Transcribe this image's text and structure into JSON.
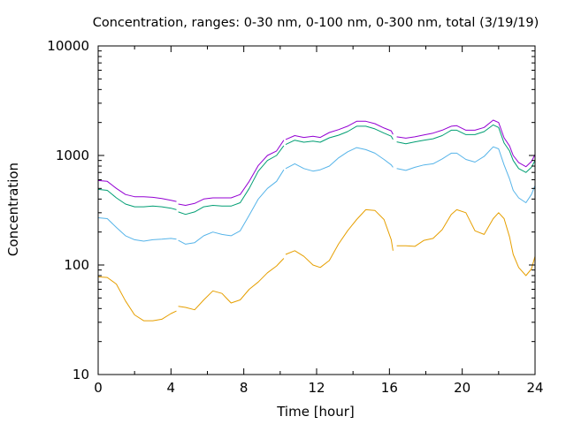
{
  "chart_data": {
    "type": "line",
    "title": "Concentration, ranges: 0-30 nm, 0-100 nm, 0-300 nm, total (3/19/19)",
    "xlabel": "Time [hour]",
    "ylabel": "Concentration",
    "xlim": [
      0,
      24
    ],
    "ylim": [
      10,
      10000
    ],
    "yscale": "log",
    "x_ticks": [
      0,
      4,
      8,
      12,
      16,
      20,
      24
    ],
    "x_tick_labels": [
      "0",
      "4",
      "8",
      "12",
      "16",
      "20",
      "24"
    ],
    "y_ticks": [
      10,
      100,
      1000,
      10000
    ],
    "y_tick_labels": [
      "10",
      "100",
      "1000",
      "10000"
    ],
    "grid": false,
    "legend": false,
    "series": [
      {
        "color": "#e69f00",
        "points": [
          [
            0,
            78
          ],
          [
            0.5,
            77
          ],
          [
            1,
            67
          ],
          [
            1.5,
            47
          ],
          [
            2,
            35
          ],
          [
            2.5,
            31
          ],
          [
            3,
            31
          ],
          [
            3.5,
            32
          ],
          [
            4,
            36
          ],
          [
            4.3,
            38
          ],
          [
            null,
            null
          ],
          [
            4.4,
            42
          ],
          [
            4.8,
            41
          ],
          [
            5.3,
            39
          ],
          [
            5.8,
            48
          ],
          [
            6.3,
            58
          ],
          [
            6.8,
            55
          ],
          [
            7.3,
            45
          ],
          [
            7.8,
            48
          ],
          [
            8.3,
            60
          ],
          [
            8.8,
            70
          ],
          [
            9.3,
            85
          ],
          [
            9.8,
            98
          ],
          [
            10.2,
            115
          ],
          [
            null,
            null
          ],
          [
            10.3,
            125
          ],
          [
            10.8,
            135
          ],
          [
            11.3,
            120
          ],
          [
            11.8,
            100
          ],
          [
            12.2,
            95
          ],
          [
            12.7,
            110
          ],
          [
            13.2,
            155
          ],
          [
            13.7,
            205
          ],
          [
            14.2,
            260
          ],
          [
            14.7,
            320
          ],
          [
            15.2,
            315
          ],
          [
            15.7,
            260
          ],
          [
            16.1,
            170
          ],
          [
            16.2,
            135
          ],
          [
            null,
            null
          ],
          [
            16.4,
            150
          ],
          [
            16.9,
            150
          ],
          [
            17.4,
            148
          ],
          [
            17.9,
            168
          ],
          [
            18.4,
            175
          ],
          [
            18.9,
            210
          ],
          [
            19.4,
            290
          ],
          [
            19.7,
            320
          ],
          [
            20.2,
            300
          ],
          [
            20.7,
            205
          ],
          [
            21.2,
            190
          ],
          [
            21.7,
            265
          ],
          [
            22.0,
            300
          ],
          [
            22.3,
            265
          ],
          [
            22.6,
            180
          ],
          [
            22.8,
            125
          ],
          [
            23.1,
            95
          ],
          [
            23.5,
            80
          ],
          [
            23.8,
            92
          ],
          [
            24,
            120
          ]
        ]
      },
      {
        "color": "#56b4e9",
        "points": [
          [
            0,
            270
          ],
          [
            0.5,
            265
          ],
          [
            1,
            220
          ],
          [
            1.5,
            185
          ],
          [
            2,
            170
          ],
          [
            2.5,
            165
          ],
          [
            3,
            170
          ],
          [
            3.5,
            172
          ],
          [
            4,
            175
          ],
          [
            4.3,
            172
          ],
          [
            null,
            null
          ],
          [
            4.4,
            168
          ],
          [
            4.8,
            155
          ],
          [
            5.3,
            160
          ],
          [
            5.8,
            185
          ],
          [
            6.3,
            200
          ],
          [
            6.8,
            190
          ],
          [
            7.3,
            185
          ],
          [
            7.8,
            205
          ],
          [
            8.3,
            285
          ],
          [
            8.8,
            400
          ],
          [
            9.3,
            500
          ],
          [
            9.8,
            580
          ],
          [
            10.2,
            740
          ],
          [
            null,
            null
          ],
          [
            10.3,
            760
          ],
          [
            10.8,
            840
          ],
          [
            11.3,
            760
          ],
          [
            11.8,
            720
          ],
          [
            12.2,
            740
          ],
          [
            12.7,
            800
          ],
          [
            13.2,
            950
          ],
          [
            13.7,
            1080
          ],
          [
            14.2,
            1180
          ],
          [
            14.7,
            1130
          ],
          [
            15.2,
            1050
          ],
          [
            15.7,
            920
          ],
          [
            16.1,
            820
          ],
          [
            16.2,
            780
          ],
          [
            null,
            null
          ],
          [
            16.4,
            760
          ],
          [
            16.9,
            730
          ],
          [
            17.4,
            780
          ],
          [
            17.9,
            820
          ],
          [
            18.4,
            840
          ],
          [
            18.9,
            930
          ],
          [
            19.4,
            1050
          ],
          [
            19.7,
            1050
          ],
          [
            20.2,
            920
          ],
          [
            20.7,
            870
          ],
          [
            21.2,
            980
          ],
          [
            21.7,
            1200
          ],
          [
            22.0,
            1150
          ],
          [
            22.3,
            820
          ],
          [
            22.6,
            610
          ],
          [
            22.8,
            480
          ],
          [
            23.1,
            410
          ],
          [
            23.5,
            370
          ],
          [
            23.8,
            440
          ],
          [
            24,
            530
          ]
        ]
      },
      {
        "color": "#009e73",
        "points": [
          [
            0,
            490
          ],
          [
            0.5,
            480
          ],
          [
            1,
            410
          ],
          [
            1.5,
            360
          ],
          [
            2,
            340
          ],
          [
            2.5,
            340
          ],
          [
            3,
            345
          ],
          [
            3.5,
            340
          ],
          [
            4,
            330
          ],
          [
            4.3,
            320
          ],
          [
            null,
            null
          ],
          [
            4.4,
            305
          ],
          [
            4.8,
            290
          ],
          [
            5.3,
            305
          ],
          [
            5.8,
            340
          ],
          [
            6.3,
            350
          ],
          [
            6.8,
            345
          ],
          [
            7.3,
            345
          ],
          [
            7.8,
            370
          ],
          [
            8.3,
            500
          ],
          [
            8.8,
            720
          ],
          [
            9.3,
            900
          ],
          [
            9.8,
            1000
          ],
          [
            10.2,
            1230
          ],
          [
            null,
            null
          ],
          [
            10.3,
            1260
          ],
          [
            10.8,
            1380
          ],
          [
            11.3,
            1320
          ],
          [
            11.8,
            1350
          ],
          [
            12.2,
            1320
          ],
          [
            12.7,
            1450
          ],
          [
            13.2,
            1530
          ],
          [
            13.7,
            1650
          ],
          [
            14.2,
            1850
          ],
          [
            14.7,
            1850
          ],
          [
            15.2,
            1750
          ],
          [
            15.7,
            1600
          ],
          [
            16.1,
            1500
          ],
          [
            16.2,
            1400
          ],
          [
            null,
            null
          ],
          [
            16.4,
            1330
          ],
          [
            16.9,
            1280
          ],
          [
            17.4,
            1330
          ],
          [
            17.9,
            1380
          ],
          [
            18.4,
            1420
          ],
          [
            18.9,
            1520
          ],
          [
            19.4,
            1700
          ],
          [
            19.7,
            1700
          ],
          [
            20.2,
            1550
          ],
          [
            20.7,
            1550
          ],
          [
            21.2,
            1650
          ],
          [
            21.7,
            1900
          ],
          [
            22.0,
            1800
          ],
          [
            22.3,
            1300
          ],
          [
            22.6,
            1100
          ],
          [
            22.8,
            900
          ],
          [
            23.1,
            760
          ],
          [
            23.5,
            700
          ],
          [
            23.8,
            780
          ],
          [
            24,
            900
          ]
        ]
      },
      {
        "color": "#9400d3",
        "points": [
          [
            0,
            590
          ],
          [
            0.5,
            580
          ],
          [
            1,
            500
          ],
          [
            1.5,
            440
          ],
          [
            2,
            420
          ],
          [
            2.5,
            420
          ],
          [
            3,
            415
          ],
          [
            3.5,
            405
          ],
          [
            4,
            390
          ],
          [
            4.3,
            380
          ],
          [
            null,
            null
          ],
          [
            4.4,
            360
          ],
          [
            4.8,
            350
          ],
          [
            5.3,
            365
          ],
          [
            5.8,
            400
          ],
          [
            6.3,
            410
          ],
          [
            6.8,
            410
          ],
          [
            7.3,
            410
          ],
          [
            7.8,
            440
          ],
          [
            8.3,
            580
          ],
          [
            8.8,
            810
          ],
          [
            9.3,
            1000
          ],
          [
            9.8,
            1100
          ],
          [
            10.2,
            1380
          ],
          [
            null,
            null
          ],
          [
            10.3,
            1400
          ],
          [
            10.8,
            1520
          ],
          [
            11.3,
            1460
          ],
          [
            11.8,
            1500
          ],
          [
            12.2,
            1460
          ],
          [
            12.7,
            1620
          ],
          [
            13.2,
            1720
          ],
          [
            13.7,
            1850
          ],
          [
            14.2,
            2050
          ],
          [
            14.7,
            2050
          ],
          [
            15.2,
            1950
          ],
          [
            15.7,
            1780
          ],
          [
            16.1,
            1680
          ],
          [
            16.2,
            1560
          ],
          [
            null,
            null
          ],
          [
            16.4,
            1480
          ],
          [
            16.9,
            1440
          ],
          [
            17.4,
            1480
          ],
          [
            17.9,
            1540
          ],
          [
            18.4,
            1600
          ],
          [
            18.9,
            1700
          ],
          [
            19.4,
            1850
          ],
          [
            19.7,
            1870
          ],
          [
            20.2,
            1700
          ],
          [
            20.7,
            1700
          ],
          [
            21.2,
            1800
          ],
          [
            21.7,
            2100
          ],
          [
            22.0,
            2000
          ],
          [
            22.3,
            1450
          ],
          [
            22.6,
            1220
          ],
          [
            22.8,
            1000
          ],
          [
            23.1,
            860
          ],
          [
            23.5,
            790
          ],
          [
            23.8,
            880
          ],
          [
            24,
            1020
          ]
        ]
      }
    ]
  }
}
